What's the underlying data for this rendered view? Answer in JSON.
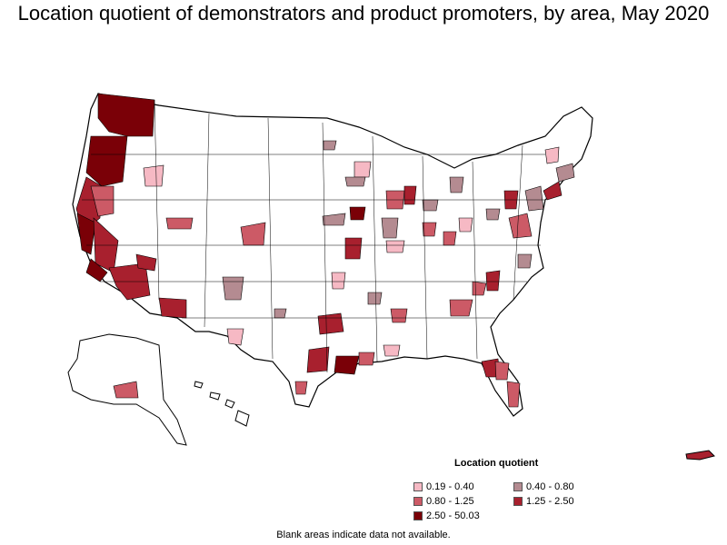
{
  "title": "Location quotient of demonstrators and product promoters, by area, May 2020",
  "legend": {
    "title": "Location quotient",
    "items": [
      {
        "label": "0.19 - 0.40",
        "color": "#f6b9c4"
      },
      {
        "label": "0.40 - 0.80",
        "color": "#b48b91"
      },
      {
        "label": "0.80 - 1.25",
        "color": "#cc5a66"
      },
      {
        "label": "1.25 - 2.50",
        "color": "#a8202e"
      },
      {
        "label": "2.50 - 50.03",
        "color": "#7a0007"
      }
    ]
  },
  "footnote": "Blank areas indicate data not available.",
  "colors": {
    "border": "#000000",
    "blank": "#ffffff"
  }
}
